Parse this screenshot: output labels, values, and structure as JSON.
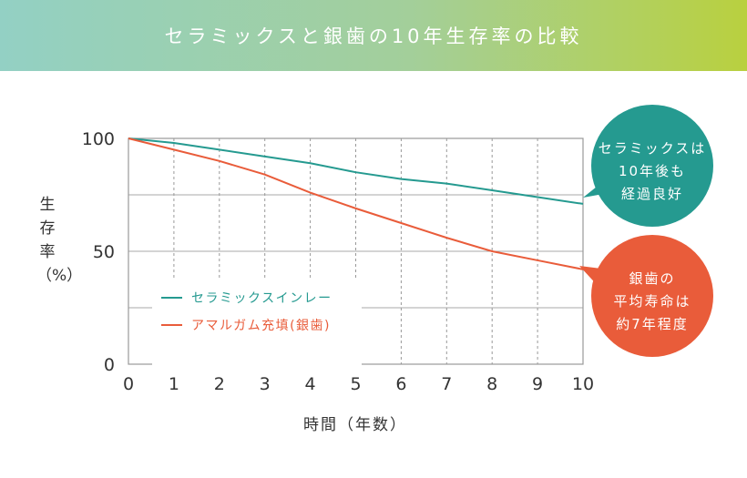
{
  "header": {
    "title": "セラミックスと銀歯の10年生存率の比較"
  },
  "chart_data": {
    "type": "line",
    "title": "セラミックスと銀歯の10年生存率の比較",
    "xlabel": "時間（年数）",
    "ylabel": "生存率（%）",
    "x": [
      0,
      1,
      2,
      3,
      4,
      5,
      6,
      7,
      8,
      9,
      10
    ],
    "xlim": [
      0,
      10
    ],
    "ylim": [
      0,
      100
    ],
    "yticks": [
      0,
      50,
      100
    ],
    "grid": true,
    "legend": "bottom-left",
    "series": [
      {
        "name": "セラミックスインレー",
        "color": "#259a90",
        "values": [
          100,
          98,
          95,
          92,
          89,
          85,
          82,
          80,
          77,
          74,
          71
        ]
      },
      {
        "name": "アマルガム充填(銀歯)",
        "color": "#e95c3a",
        "values": [
          100,
          95,
          90,
          84,
          76,
          69,
          62.5,
          56,
          50,
          46,
          42
        ]
      }
    ],
    "annotations": [
      {
        "lines": [
          "セラミックスは",
          "10年後も",
          "経過良好"
        ],
        "color": "#259a90"
      },
      {
        "lines": [
          "銀歯の",
          "平均寿命は",
          "約7年程度"
        ],
        "color": "#e95c3a"
      }
    ]
  }
}
